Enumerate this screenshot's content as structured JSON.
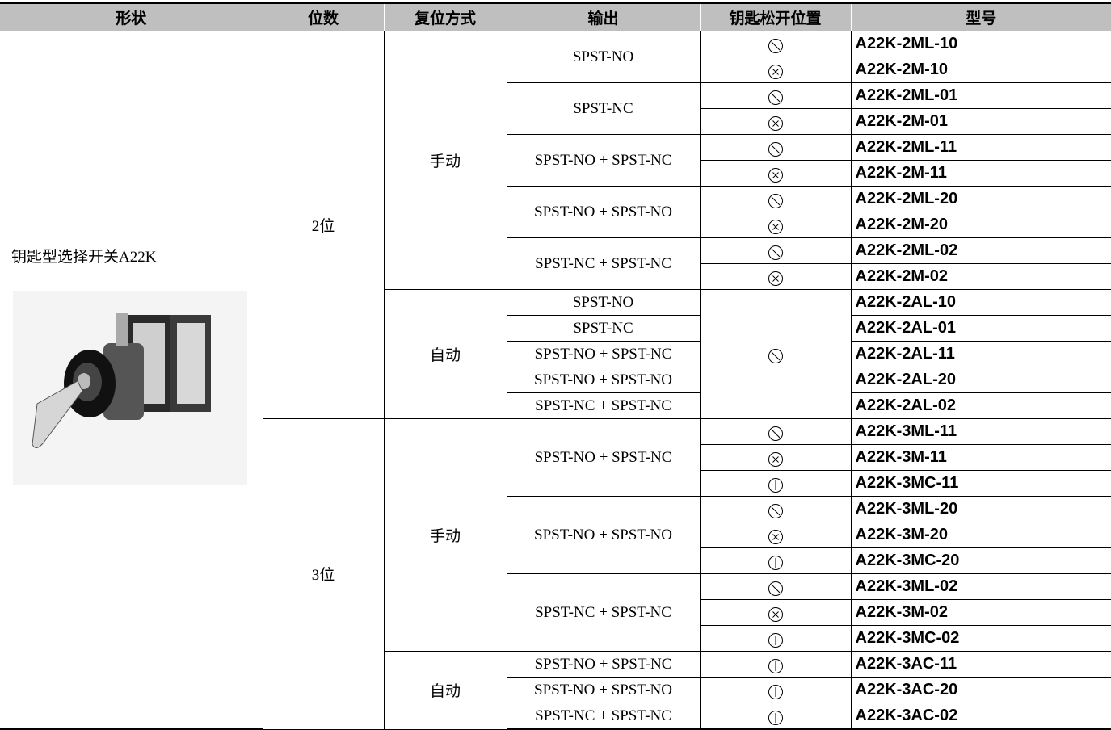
{
  "header": [
    "形状",
    "位数",
    "复位方式",
    "输出",
    "钥匙松开位置",
    "型号"
  ],
  "shape": "钥匙型选择开关A22K",
  "groups": [
    {
      "positions": "2位",
      "resets": [
        {
          "reset": "手动",
          "outputs": [
            {
              "output": "SPST-NO",
              "models": [
                "A22K-2ML-10",
                "A22K-2M-10"
              ]
            },
            {
              "output": "SPST-NC",
              "models": [
                "A22K-2ML-01",
                "A22K-2M-01"
              ]
            },
            {
              "output": "SPST-NO + SPST-NC",
              "models": [
                "A22K-2ML-11",
                "A22K-2M-11"
              ]
            },
            {
              "output": "SPST-NO + SPST-NO",
              "models": [
                "A22K-2ML-20",
                "A22K-2M-20"
              ]
            },
            {
              "output": "SPST-NC + SPST-NC",
              "models": [
                "A22K-2ML-02",
                "A22K-2M-02"
              ]
            }
          ]
        },
        {
          "reset": "自动",
          "outputs": [
            {
              "output": "SPST-NO",
              "models": [
                "A22K-2AL-10"
              ]
            },
            {
              "output": "SPST-NC",
              "models": [
                "A22K-2AL-01"
              ]
            },
            {
              "output": "SPST-NO + SPST-NC",
              "models": [
                "A22K-2AL-11"
              ]
            },
            {
              "output": "SPST-NO + SPST-NO",
              "models": [
                "A22K-2AL-20"
              ]
            },
            {
              "output": "SPST-NC + SPST-NC",
              "models": [
                "A22K-2AL-02"
              ]
            }
          ]
        }
      ]
    },
    {
      "positions": "3位",
      "resets": [
        {
          "reset": "手动",
          "outputs": [
            {
              "output": "SPST-NO + SPST-NC",
              "models": [
                "A22K-3ML-11",
                "A22K-3M-11",
                "A22K-3MC-11"
              ]
            },
            {
              "output": "SPST-NO + SPST-NO",
              "models": [
                "A22K-3ML-20",
                "A22K-3M-20",
                "A22K-3MC-20"
              ]
            },
            {
              "output": "SPST-NC + SPST-NC",
              "models": [
                "A22K-3ML-02",
                "A22K-3M-02",
                "A22K-3MC-02"
              ]
            }
          ]
        },
        {
          "reset": "自动",
          "outputs": [
            {
              "output": "SPST-NO + SPST-NC",
              "models": [
                "A22K-3AC-11"
              ]
            },
            {
              "output": "SPST-NO + SPST-NO",
              "models": [
                "A22K-3AC-20"
              ]
            },
            {
              "output": "SPST-NC + SPST-NC",
              "models": [
                "A22K-3AC-02"
              ]
            }
          ]
        }
      ]
    }
  ]
}
